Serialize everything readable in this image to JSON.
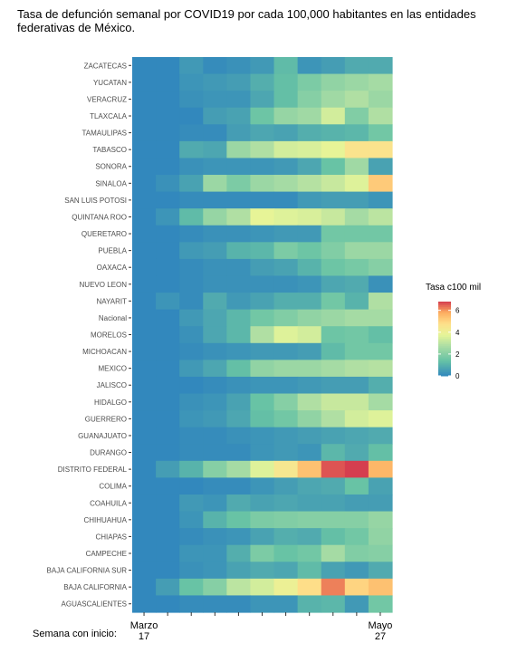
{
  "chart_data": {
    "type": "heatmap",
    "title": "Tasa de defunción semanal por COVID19 por cada 100,000 habitantes en las entidades federativas de México.",
    "x_prefix": "Semana con inicio:",
    "x_tick_labels": [
      {
        "col": 0,
        "label": "Marzo\n17"
      },
      {
        "col": 10,
        "label": "Mayo\n27"
      }
    ],
    "n_weeks": 11,
    "legend": {
      "title": "Tasa c100 mil",
      "ticks": [
        0,
        2,
        4,
        6
      ],
      "min": 0,
      "max": 6.8,
      "position": "right"
    },
    "rows": [
      {
        "name": "ZACATECAS",
        "values": [
          0,
          0,
          0.4,
          0.1,
          0.2,
          0.4,
          1.2,
          0.3,
          0.5,
          0.8,
          0.8
        ]
      },
      {
        "name": "YUCATAN",
        "values": [
          0,
          0,
          0.3,
          0.4,
          0.5,
          0.9,
          1.3,
          1.8,
          2.2,
          2.4,
          2.6
        ]
      },
      {
        "name": "VERACRUZ",
        "values": [
          0,
          0,
          0.2,
          0.3,
          0.3,
          0.7,
          1.3,
          2.0,
          2.5,
          2.8,
          2.4
        ]
      },
      {
        "name": "TLAXCALA",
        "values": [
          0,
          0,
          0,
          0.5,
          0.6,
          1.5,
          2.3,
          2.5,
          3.4,
          1.9,
          2.8
        ]
      },
      {
        "name": "TAMAULIPAS",
        "values": [
          0,
          0,
          0.1,
          0.1,
          0.5,
          0.7,
          0.6,
          0.9,
          1.0,
          1.1,
          1.6
        ]
      },
      {
        "name": "TABASCO",
        "values": [
          0,
          0,
          0.8,
          0.7,
          2.4,
          2.8,
          3.4,
          3.5,
          3.8,
          4.6,
          4.6
        ]
      },
      {
        "name": "SONORA",
        "values": [
          0,
          0,
          0.2,
          0.3,
          0.3,
          0.3,
          0.4,
          0.7,
          1.4,
          2.5,
          0.6
        ]
      },
      {
        "name": "SINALOA",
        "values": [
          0,
          0.2,
          0.6,
          2.4,
          1.8,
          2.4,
          2.6,
          2.9,
          3.2,
          3.6,
          5.2
        ]
      },
      {
        "name": "SAN LUIS POTOSI",
        "values": [
          0,
          0,
          0.1,
          0.1,
          0.1,
          0.1,
          0.1,
          0.4,
          0.5,
          0.5,
          0.3
        ]
      },
      {
        "name": "QUINTANA ROO",
        "values": [
          0,
          0.3,
          1.2,
          2.3,
          2.8,
          3.8,
          3.6,
          3.5,
          3.2,
          2.6,
          3.0
        ]
      },
      {
        "name": "QUERETARO",
        "values": [
          0,
          0,
          0.1,
          0.2,
          0.2,
          0.3,
          0.4,
          0.4,
          1.6,
          1.6,
          1.6
        ]
      },
      {
        "name": "PUEBLA",
        "values": [
          0,
          0,
          0.4,
          0.5,
          1.0,
          1.1,
          1.8,
          1.5,
          1.9,
          2.4,
          2.4
        ]
      },
      {
        "name": "OAXACA",
        "values": [
          0,
          0,
          0.1,
          0.2,
          0.2,
          0.5,
          0.6,
          1.0,
          1.5,
          1.7,
          2.0
        ]
      },
      {
        "name": "NUEVO LEON",
        "values": [
          0,
          0,
          0.1,
          0.2,
          0.2,
          0.2,
          0.2,
          0.3,
          0.7,
          0.8,
          0.2
        ]
      },
      {
        "name": "NAYARIT",
        "values": [
          0,
          0.3,
          0.1,
          0.8,
          0.4,
          0.6,
          0.9,
          0.9,
          1.6,
          1.0,
          2.8
        ]
      },
      {
        "name": "Nacional",
        "values": [
          0,
          0,
          0.4,
          0.7,
          1.1,
          1.6,
          1.9,
          2.2,
          2.4,
          2.6,
          2.6
        ]
      },
      {
        "name": "MORELOS",
        "values": [
          0,
          0,
          0.2,
          0.7,
          1.1,
          2.8,
          3.6,
          3.4,
          1.5,
          1.6,
          1.3
        ]
      },
      {
        "name": "MICHOACAN",
        "values": [
          0,
          0,
          0.1,
          0.2,
          0.3,
          0.4,
          0.4,
          0.5,
          1.2,
          1.6,
          1.6
        ]
      },
      {
        "name": "MEXICO",
        "values": [
          0,
          0,
          0.4,
          0.7,
          1.3,
          2.2,
          2.4,
          2.4,
          2.6,
          2.8,
          2.9
        ]
      },
      {
        "name": "JALISCO",
        "values": [
          0,
          0,
          0,
          0.1,
          0.2,
          0.3,
          0.3,
          0.4,
          0.5,
          0.5,
          0.9
        ]
      },
      {
        "name": "HIDALGO",
        "values": [
          0,
          0,
          0.2,
          0.3,
          0.6,
          1.4,
          2.0,
          2.8,
          3.2,
          3.2,
          2.6
        ]
      },
      {
        "name": "GUERRERO",
        "values": [
          0,
          0,
          0.3,
          0.4,
          0.7,
          1.3,
          1.6,
          2.2,
          2.8,
          3.4,
          3.6
        ]
      },
      {
        "name": "GUANAJUATO",
        "values": [
          0,
          0,
          0.1,
          0.1,
          0.2,
          0.3,
          0.4,
          0.5,
          0.6,
          0.7,
          0.8
        ]
      },
      {
        "name": "DURANGO",
        "values": [
          0,
          0,
          0.1,
          0.1,
          0.1,
          0.3,
          0.4,
          0.3,
          1.1,
          0.8,
          1.3
        ]
      },
      {
        "name": "DISTRITO FEDERAL",
        "values": [
          0,
          0.5,
          1.0,
          2.0,
          2.6,
          3.6,
          4.4,
          5.4,
          6.6,
          6.8,
          5.6
        ]
      },
      {
        "name": "COLIMA",
        "values": [
          0,
          0,
          0,
          0.1,
          0.1,
          0.3,
          0.5,
          0.7,
          0.8,
          1.4,
          0.6
        ]
      },
      {
        "name": "COAHUILA",
        "values": [
          0,
          0,
          0.4,
          0.3,
          0.8,
          0.6,
          0.7,
          0.6,
          0.6,
          0.5,
          0.5
        ]
      },
      {
        "name": "CHIHUAHUA",
        "values": [
          0,
          0,
          0.3,
          1.0,
          1.4,
          1.8,
          1.9,
          2.0,
          2.0,
          2.0,
          2.3
        ]
      },
      {
        "name": "CHIAPAS",
        "values": [
          0,
          0,
          0.1,
          0.2,
          0.3,
          0.6,
          0.9,
          0.8,
          1.3,
          1.6,
          2.2
        ]
      },
      {
        "name": "CAMPECHE",
        "values": [
          0,
          0,
          0.3,
          0.3,
          0.9,
          1.8,
          1.4,
          1.6,
          2.6,
          1.9,
          2.0
        ]
      },
      {
        "name": "BAJA CALIFORNIA SUR",
        "values": [
          0,
          0,
          0.2,
          0.3,
          0.6,
          0.8,
          0.7,
          1.2,
          0.6,
          0.4,
          0.8
        ]
      },
      {
        "name": "BAJA CALIFORNIA",
        "values": [
          0,
          0.5,
          1.4,
          2.0,
          3.0,
          3.4,
          4.0,
          4.8,
          6.2,
          5.0,
          5.4
        ]
      },
      {
        "name": "AGUASCALIENTES",
        "values": [
          0,
          0,
          0.1,
          0.1,
          0.1,
          0.3,
          0.3,
          1.0,
          1.1,
          0.4,
          1.6
        ]
      }
    ]
  }
}
